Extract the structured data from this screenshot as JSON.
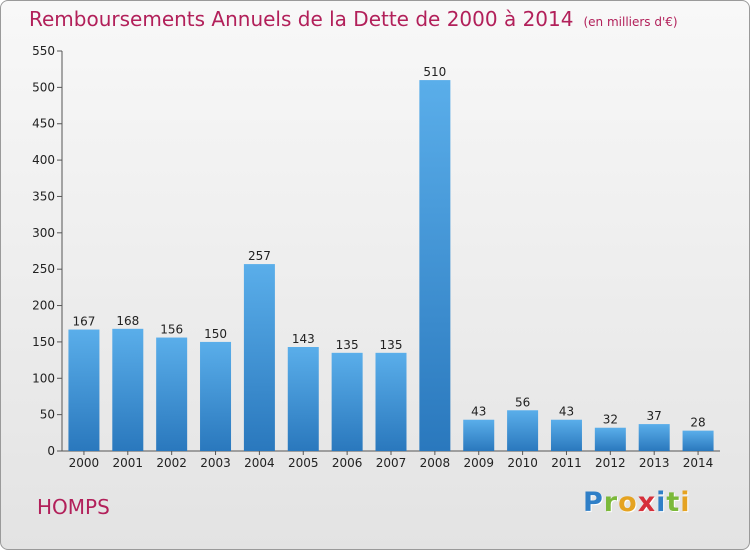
{
  "chart_data": {
    "type": "bar",
    "title": "Remboursements Annuels de la Dette de 2000 à 2014",
    "unit": "(en milliers d'€)",
    "categories": [
      "2000",
      "2001",
      "2002",
      "2003",
      "2004",
      "2005",
      "2006",
      "2007",
      "2008",
      "2009",
      "2010",
      "2011",
      "2012",
      "2013",
      "2014"
    ],
    "values": [
      167,
      168,
      156,
      150,
      257,
      143,
      135,
      135,
      510,
      43,
      56,
      43,
      32,
      37,
      28
    ],
    "ylim": [
      0,
      550
    ],
    "yticks": [
      0,
      50,
      100,
      150,
      200,
      250,
      300,
      350,
      400,
      450,
      500,
      550
    ],
    "grid": false,
    "bar_color": "#3d92d6"
  },
  "place": "HOMPS",
  "logo": {
    "letters": [
      "P",
      "r",
      "o",
      "x",
      "i",
      "t",
      "i"
    ],
    "colors": [
      "#2f7fc7",
      "#7bb93a",
      "#e5a321",
      "#d62f3a",
      "#2f7fc7",
      "#7bb93a",
      "#e5a321"
    ]
  }
}
